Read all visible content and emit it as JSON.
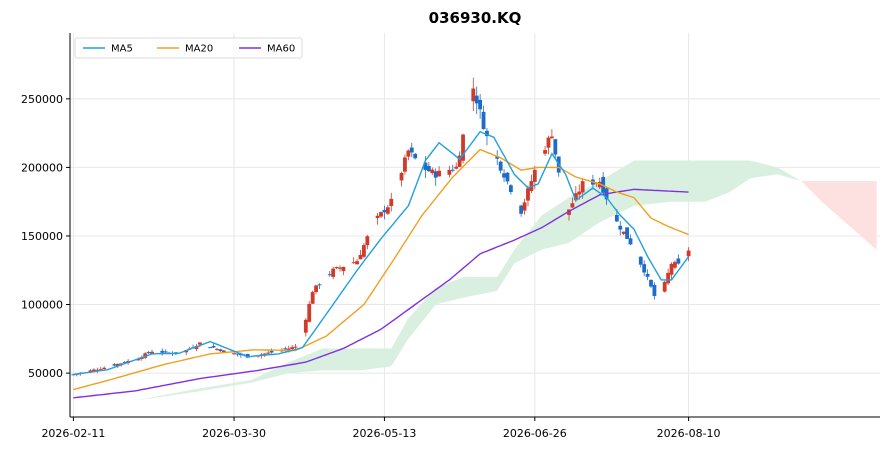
{
  "chart_data": {
    "type": "candlestick",
    "title": "036930.KQ",
    "xlabel": "",
    "ylabel": "",
    "x_range": [
      "2026-02-10",
      "2026-10-05"
    ],
    "ylim": [
      18000,
      298000
    ],
    "x_ticks": [
      "2026-02-11",
      "2026-03-30",
      "2026-05-13",
      "2026-06-26",
      "2026-08-10"
    ],
    "y_ticks": [
      50000,
      100000,
      150000,
      200000,
      250000
    ],
    "y_tick_labels": [
      "50000",
      "100000",
      "150000",
      "200000",
      "250000"
    ],
    "grid": true,
    "legend": {
      "placement": "top-left",
      "entries": [
        {
          "label": "MA5",
          "color": "#1fa0e0"
        },
        {
          "label": "MA20",
          "color": "#f0a020"
        },
        {
          "label": "MA60",
          "color": "#8030e0"
        }
      ]
    },
    "colors": {
      "up": "#d03a2a",
      "down": "#1e6cc8",
      "cloud_bull": "#d9f0e0",
      "cloud_bear": "#fde0e0",
      "grid": "#e8e8e8"
    },
    "anchors": {
      "close": [
        [
          "2026-02-11",
          49000
        ],
        [
          "2026-02-20",
          54000
        ],
        [
          "2026-03-01",
          60000
        ],
        [
          "2026-03-06",
          66000
        ],
        [
          "2026-03-14",
          64000
        ],
        [
          "2026-03-20",
          72000
        ],
        [
          "2026-03-27",
          66000
        ],
        [
          "2026-04-03",
          62000
        ],
        [
          "2026-04-12",
          66000
        ],
        [
          "2026-04-18",
          70000
        ],
        [
          "2026-04-22",
          110000
        ],
        [
          "2026-04-28",
          125000
        ],
        [
          "2026-05-05",
          132000
        ],
        [
          "2026-05-10",
          160000
        ],
        [
          "2026-05-15",
          175000
        ],
        [
          "2026-05-20",
          212000
        ],
        [
          "2026-05-24",
          200000
        ],
        [
          "2026-05-28",
          195000
        ],
        [
          "2026-06-03",
          200000
        ],
        [
          "2026-06-08",
          258000
        ],
        [
          "2026-06-12",
          222000
        ],
        [
          "2026-06-17",
          195000
        ],
        [
          "2026-06-22",
          168000
        ],
        [
          "2026-06-27",
          205000
        ],
        [
          "2026-07-01",
          225000
        ],
        [
          "2026-07-05",
          165000
        ],
        [
          "2026-07-10",
          188000
        ],
        [
          "2026-07-15",
          190000
        ],
        [
          "2026-07-20",
          160000
        ],
        [
          "2026-07-24",
          145000
        ],
        [
          "2026-07-28",
          125000
        ],
        [
          "2026-08-01",
          100000
        ],
        [
          "2026-08-05",
          130000
        ],
        [
          "2026-08-08",
          128000
        ],
        [
          "2026-08-10",
          140000
        ]
      ],
      "ma5": [
        [
          "2026-02-11",
          49000
        ],
        [
          "2026-02-21",
          52500
        ],
        [
          "2026-03-06",
          64000
        ],
        [
          "2026-03-14",
          64500
        ],
        [
          "2026-03-23",
          73000
        ],
        [
          "2026-04-03",
          62000
        ],
        [
          "2026-04-12",
          64000
        ],
        [
          "2026-04-19",
          68500
        ],
        [
          "2026-04-26",
          93000
        ],
        [
          "2026-05-05",
          125000
        ],
        [
          "2026-05-12",
          148000
        ],
        [
          "2026-05-20",
          172000
        ],
        [
          "2026-05-25",
          205000
        ],
        [
          "2026-05-29",
          218000
        ],
        [
          "2026-06-04",
          206000
        ],
        [
          "2026-06-10",
          226000
        ],
        [
          "2026-06-14",
          222000
        ],
        [
          "2026-06-20",
          195000
        ],
        [
          "2026-06-24",
          185000
        ],
        [
          "2026-06-27",
          188000
        ],
        [
          "2026-07-01",
          210000
        ],
        [
          "2026-07-05",
          195000
        ],
        [
          "2026-07-08",
          176000
        ],
        [
          "2026-07-13",
          185000
        ],
        [
          "2026-07-17",
          178000
        ],
        [
          "2026-07-21",
          165000
        ],
        [
          "2026-07-25",
          155000
        ],
        [
          "2026-07-29",
          135000
        ],
        [
          "2026-08-02",
          118000
        ],
        [
          "2026-08-05",
          118000
        ],
        [
          "2026-08-10",
          135000
        ]
      ],
      "ma20": [
        [
          "2026-02-11",
          38000
        ],
        [
          "2026-02-23",
          46000
        ],
        [
          "2026-03-09",
          56000
        ],
        [
          "2026-03-23",
          64000
        ],
        [
          "2026-04-05",
          67000
        ],
        [
          "2026-04-17",
          66500
        ],
        [
          "2026-04-26",
          77000
        ],
        [
          "2026-05-07",
          100000
        ],
        [
          "2026-05-15",
          130000
        ],
        [
          "2026-05-24",
          165000
        ],
        [
          "2026-06-02",
          193000
        ],
        [
          "2026-06-10",
          213000
        ],
        [
          "2026-06-16",
          207000
        ],
        [
          "2026-06-22",
          198000
        ],
        [
          "2026-06-27",
          200000
        ],
        [
          "2026-07-03",
          200000
        ],
        [
          "2026-07-08",
          193000
        ],
        [
          "2026-07-15",
          188000
        ],
        [
          "2026-07-20",
          182000
        ],
        [
          "2026-07-25",
          178000
        ],
        [
          "2026-07-30",
          163000
        ],
        [
          "2026-08-04",
          157000
        ],
        [
          "2026-08-10",
          151000
        ]
      ],
      "ma60": [
        [
          "2026-02-11",
          32000
        ],
        [
          "2026-03-01",
          37000
        ],
        [
          "2026-03-20",
          46000
        ],
        [
          "2026-04-06",
          52000
        ],
        [
          "2026-04-20",
          58000
        ],
        [
          "2026-05-01",
          68000
        ],
        [
          "2026-05-12",
          82000
        ],
        [
          "2026-05-22",
          100000
        ],
        [
          "2026-06-01",
          118000
        ],
        [
          "2026-06-10",
          137000
        ],
        [
          "2026-06-20",
          147000
        ],
        [
          "2026-06-28",
          156000
        ],
        [
          "2026-07-06",
          168000
        ],
        [
          "2026-07-15",
          180000
        ],
        [
          "2026-07-25",
          184000
        ],
        [
          "2026-08-02",
          183000
        ],
        [
          "2026-08-10",
          182000
        ]
      ],
      "span_a": [
        [
          "2026-02-11",
          31000
        ],
        [
          "2026-03-01",
          30000
        ],
        [
          "2026-03-18",
          38000
        ],
        [
          "2026-04-04",
          45000
        ],
        [
          "2026-04-15",
          58000
        ],
        [
          "2026-04-25",
          68000
        ],
        [
          "2026-05-06",
          68000
        ],
        [
          "2026-05-15",
          68000
        ],
        [
          "2026-05-20",
          90000
        ],
        [
          "2026-05-28",
          112000
        ],
        [
          "2026-06-05",
          120000
        ],
        [
          "2026-06-15",
          120000
        ],
        [
          "2026-06-20",
          140000
        ],
        [
          "2026-06-28",
          165000
        ],
        [
          "2026-07-06",
          178000
        ],
        [
          "2026-07-15",
          190000
        ],
        [
          "2026-07-25",
          205000
        ],
        [
          "2026-08-05",
          205000
        ],
        [
          "2026-08-15",
          205000
        ],
        [
          "2026-08-22",
          205000
        ],
        [
          "2026-08-28",
          205000
        ],
        [
          "2026-09-05",
          200000
        ],
        [
          "2026-09-12",
          190000
        ],
        [
          "2026-09-18",
          175000
        ],
        [
          "2026-10-04",
          140000
        ]
      ],
      "span_b": [
        [
          "2026-02-11",
          31000
        ],
        [
          "2026-03-01",
          30000
        ],
        [
          "2026-03-18",
          36000
        ],
        [
          "2026-04-04",
          43000
        ],
        [
          "2026-04-15",
          50000
        ],
        [
          "2026-04-25",
          52000
        ],
        [
          "2026-05-06",
          52000
        ],
        [
          "2026-05-15",
          55000
        ],
        [
          "2026-05-20",
          75000
        ],
        [
          "2026-05-28",
          100000
        ],
        [
          "2026-06-05",
          105000
        ],
        [
          "2026-06-15",
          110000
        ],
        [
          "2026-06-20",
          130000
        ],
        [
          "2026-06-28",
          140000
        ],
        [
          "2026-07-06",
          145000
        ],
        [
          "2026-07-15",
          160000
        ],
        [
          "2026-07-25",
          172000
        ],
        [
          "2026-08-05",
          175000
        ],
        [
          "2026-08-15",
          175000
        ],
        [
          "2026-08-22",
          182000
        ],
        [
          "2026-08-28",
          192000
        ],
        [
          "2026-09-05",
          195000
        ],
        [
          "2026-09-12",
          190000
        ],
        [
          "2026-09-18",
          190000
        ],
        [
          "2026-10-04",
          190000
        ]
      ]
    }
  }
}
